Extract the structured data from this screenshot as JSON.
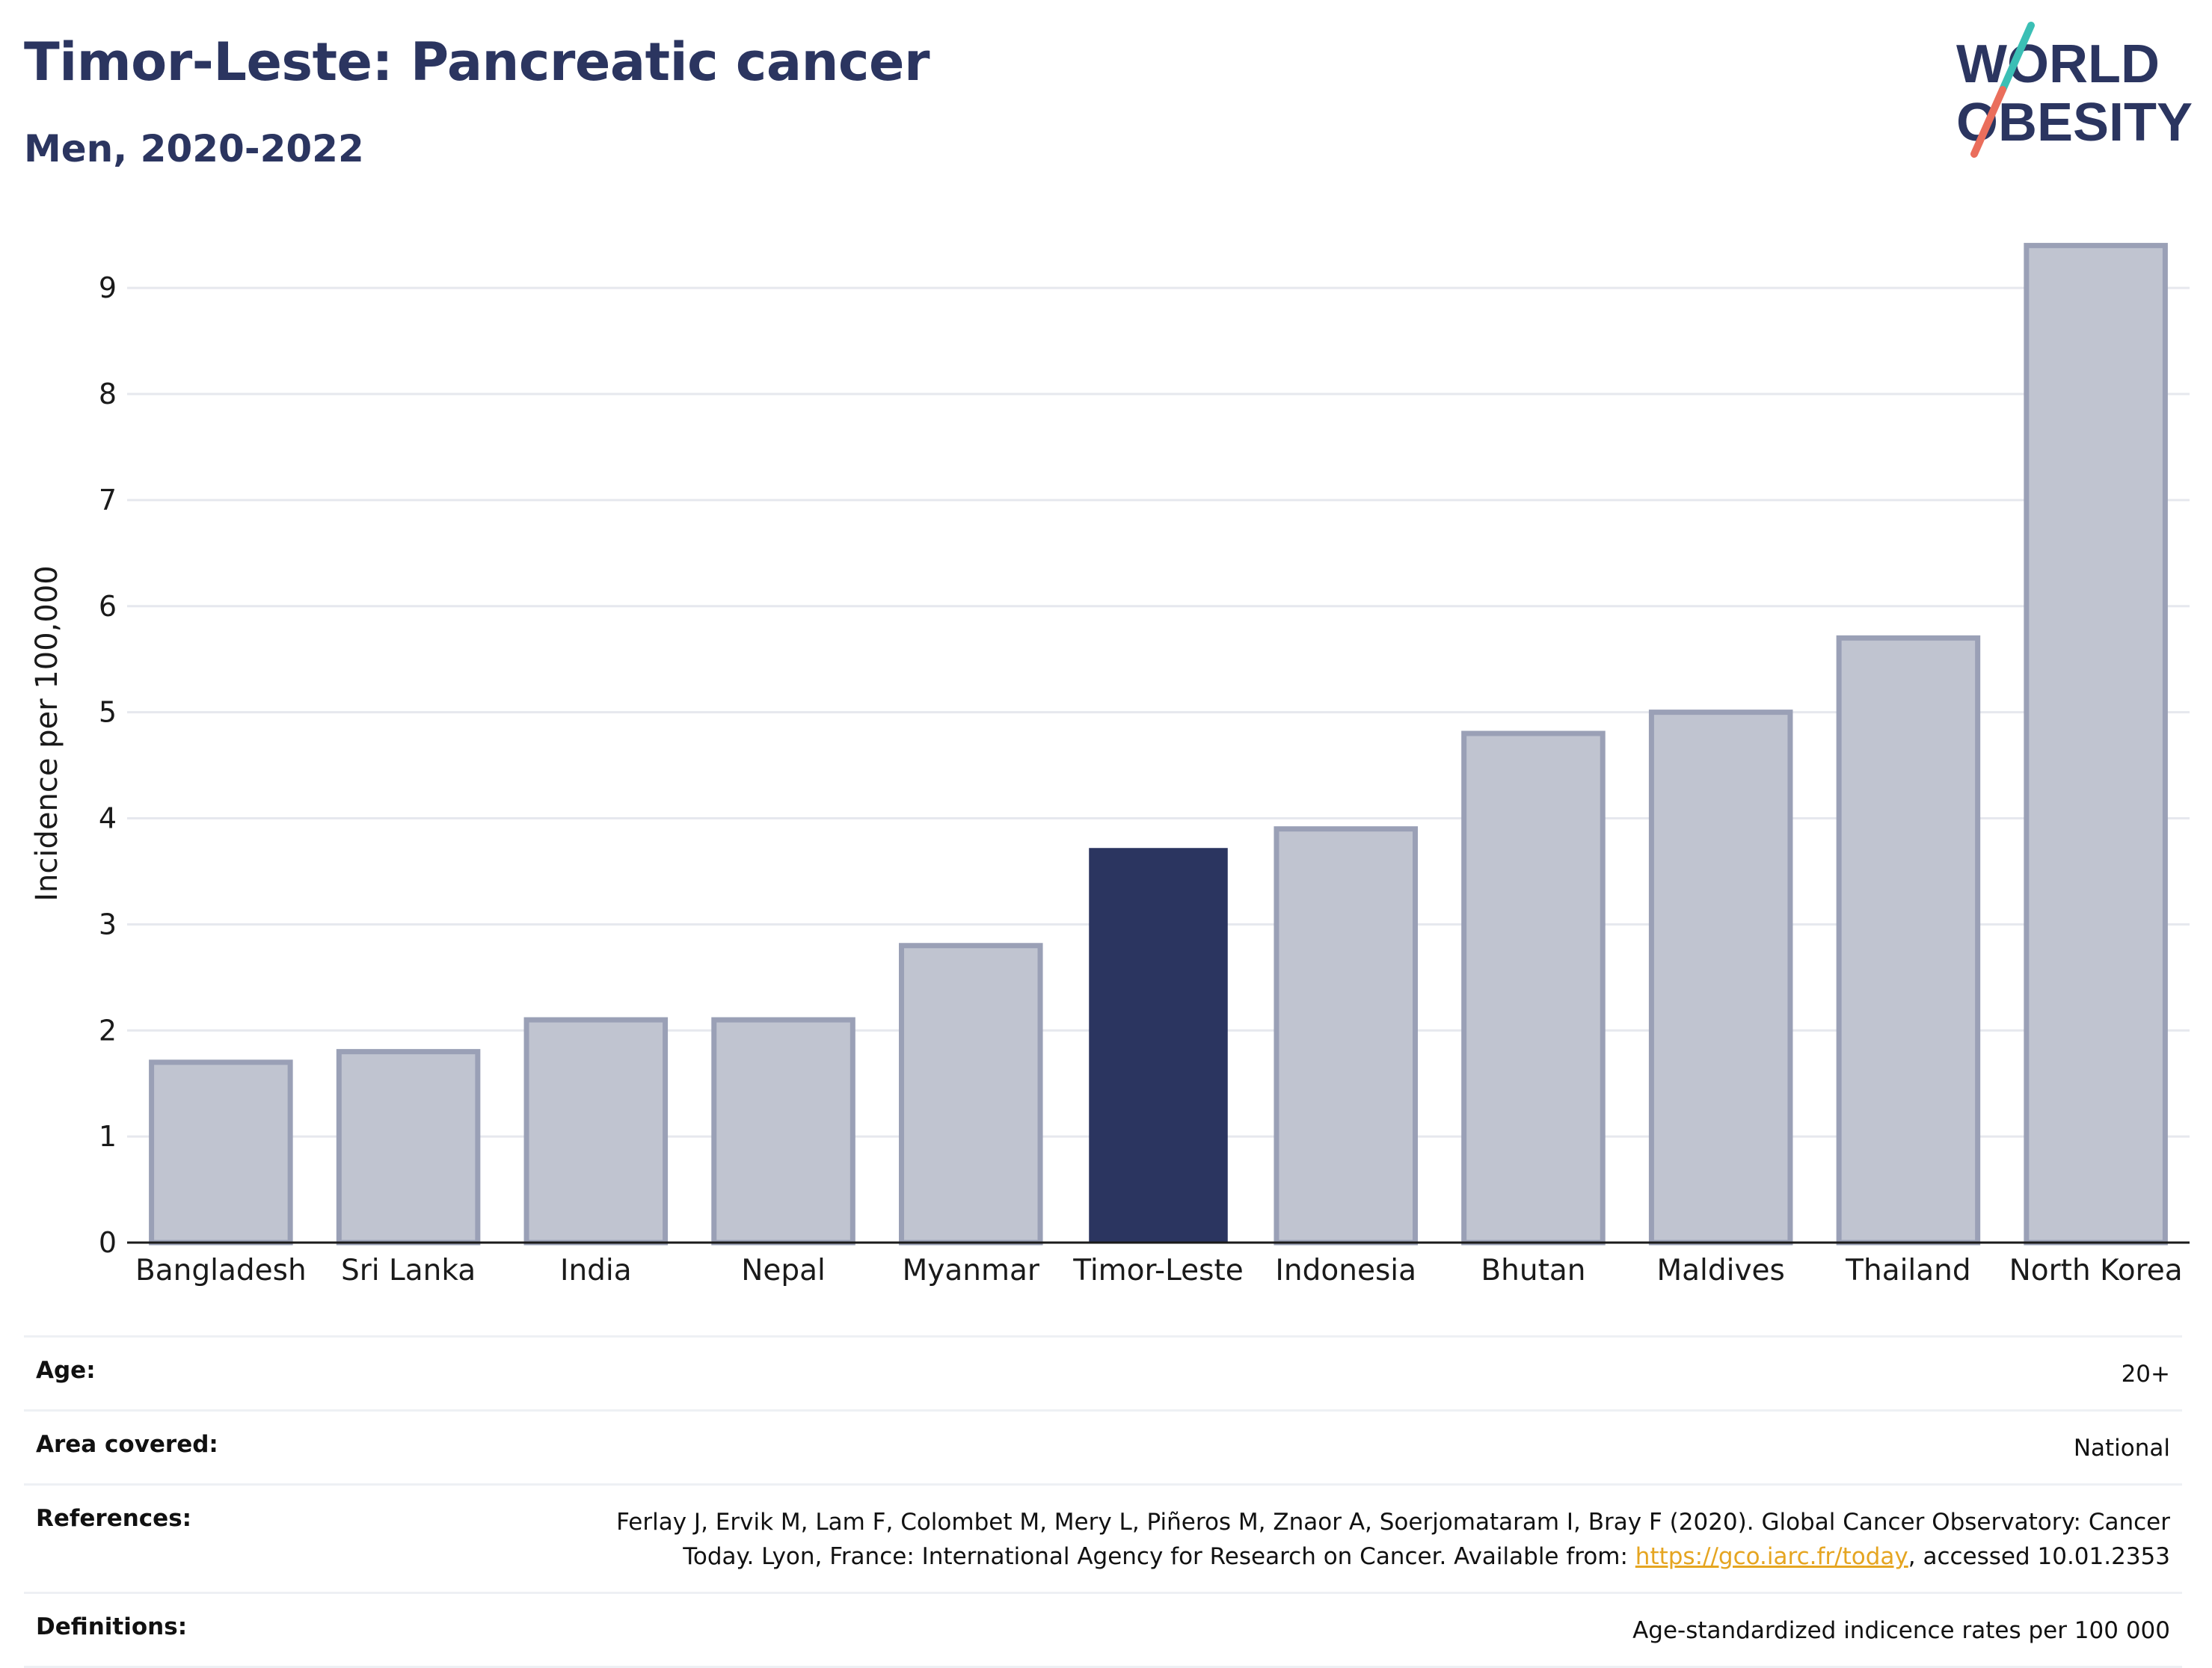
{
  "header": {
    "title": "Timor-Leste: Pancreatic cancer",
    "subtitle": "Men, 2020-2022"
  },
  "logo": {
    "line1": "WORLD",
    "line2": "OBESITY",
    "colors": {
      "text": "#2b3560",
      "slash_top": "#3bbfb5",
      "slash_bottom": "#ea6e5c"
    }
  },
  "colors": {
    "highlight_bar": "#2b3560",
    "other_bar_fill": "#c0c4d0",
    "other_bar_stroke": "#9aa0b6",
    "gridline": "#e6e8ee",
    "axis": "#1a1a1a"
  },
  "chart_data": {
    "type": "bar",
    "ylabel": "Incidence per 100,000",
    "xlabel": "",
    "ylim": [
      0,
      9.6
    ],
    "yticks": [
      0,
      1,
      2,
      3,
      4,
      5,
      6,
      7,
      8,
      9
    ],
    "grid": true,
    "highlight": "Timor-Leste",
    "categories": [
      "Bangladesh",
      "Sri Lanka",
      "India",
      "Nepal",
      "Myanmar",
      "Timor-Leste",
      "Indonesia",
      "Bhutan",
      "Maldives",
      "Thailand",
      "North Korea"
    ],
    "values": [
      1.7,
      1.8,
      2.1,
      2.1,
      2.8,
      3.72,
      3.9,
      4.8,
      5.0,
      5.7,
      9.4
    ]
  },
  "info": {
    "age": {
      "label": "Age:",
      "value": "20+"
    },
    "area": {
      "label": "Area covered:",
      "value": "National"
    },
    "references": {
      "label": "References:",
      "text_before": "Ferlay J, Ervik M, Lam F, Colombet M, Mery L, Piñeros M, Znaor A, Soerjomataram I, Bray F (2020). Global Cancer Observatory: Cancer Today. Lyon, France: International Agency for Research on Cancer. Available from: ",
      "link_text": "https://gco.iarc.fr/today",
      "text_after": ", accessed 10.01.2353"
    },
    "definitions": {
      "label": "Definitions:",
      "value": "Age-standardized indicence rates per 100 000"
    }
  }
}
